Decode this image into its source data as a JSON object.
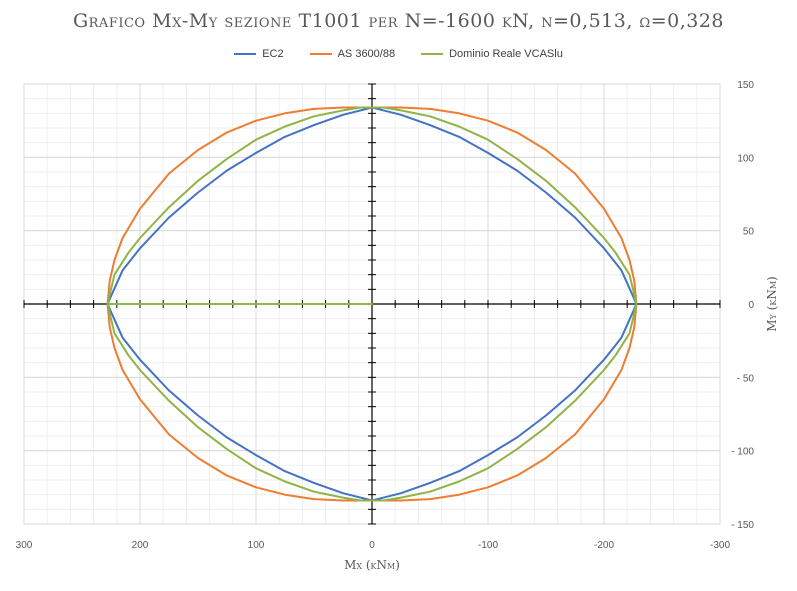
{
  "chart_data": {
    "type": "line",
    "title": "Grafico Mx-My sezione T1001 per N=-1600 kN, ν=0,513, ω=0,328",
    "xlabel": "Mx (kNm)",
    "ylabel": "My (kNm)",
    "xlim": [
      300,
      -300
    ],
    "ylim": [
      -150,
      150
    ],
    "x_reversed": true,
    "x_ticks": [
      300,
      200,
      100,
      0,
      -100,
      -200,
      -300
    ],
    "x_tick_labels": [
      "300",
      "200",
      "100",
      "0",
      "-100",
      "-200",
      "-300"
    ],
    "y_ticks": [
      150,
      100,
      50,
      0,
      -50,
      -100,
      -150
    ],
    "y_tick_labels": [
      "150",
      "100",
      "50",
      "0",
      "- 50",
      "- 100",
      "- 150"
    ],
    "y_axis_position": "right",
    "grid": true,
    "legend_position": "top",
    "series": [
      {
        "name": "EC2",
        "color": "#4472C4",
        "x": [
          228,
          215,
          200,
          175,
          150,
          125,
          100,
          75,
          50,
          25,
          0,
          -25,
          -50,
          -75,
          -100,
          -125,
          -150,
          -175,
          -200,
          -215,
          -228,
          -215,
          -200,
          -175,
          -150,
          -125,
          -100,
          -75,
          -50,
          -25,
          0,
          25,
          50,
          75,
          100,
          125,
          150,
          175,
          200,
          215,
          228
        ],
        "y": [
          0,
          23,
          38,
          59,
          76,
          91,
          103,
          114,
          122,
          129,
          134,
          129,
          122,
          114,
          103,
          91,
          76,
          59,
          38,
          23,
          0,
          -23,
          -38,
          -59,
          -76,
          -91,
          -103,
          -114,
          -122,
          -129,
          -134,
          -129,
          -122,
          -114,
          -103,
          -91,
          -76,
          -59,
          -38,
          -23,
          0
        ]
      },
      {
        "name": "AS 3600/88",
        "color": "#ED7D31",
        "x": [
          228,
          226,
          222,
          215,
          200,
          175,
          150,
          125,
          100,
          75,
          50,
          25,
          0,
          -25,
          -50,
          -75,
          -100,
          -125,
          -150,
          -175,
          -200,
          -215,
          -222,
          -226,
          -228,
          -226,
          -222,
          -215,
          -200,
          -175,
          -150,
          -125,
          -100,
          -75,
          -50,
          -25,
          0,
          25,
          50,
          75,
          100,
          125,
          150,
          175,
          200,
          215,
          222,
          226,
          228
        ],
        "y": [
          0,
          16,
          30,
          45,
          65,
          89,
          105,
          117,
          125,
          130,
          133,
          134,
          134,
          134,
          133,
          130,
          125,
          117,
          105,
          89,
          65,
          45,
          30,
          16,
          0,
          -16,
          -30,
          -45,
          -65,
          -89,
          -105,
          -117,
          -125,
          -130,
          -133,
          -134,
          -134,
          -134,
          -133,
          -130,
          -125,
          -117,
          -105,
          -89,
          -65,
          -45,
          -30,
          -16,
          0
        ]
      },
      {
        "name": "Dominio Reale VCASlu",
        "color": "#8FB447",
        "x": [
          228,
          222,
          210,
          200,
          175,
          150,
          125,
          100,
          75,
          50,
          25,
          10,
          0,
          -10,
          -25,
          -50,
          -75,
          -100,
          -125,
          -150,
          -175,
          -200,
          -210,
          -222,
          -228,
          -222,
          -210,
          -200,
          -175,
          -150,
          -125,
          -100,
          -75,
          -50,
          -25,
          -10,
          0,
          10,
          25,
          50,
          75,
          100,
          125,
          150,
          175,
          200,
          210,
          222,
          228,
          100,
          0
        ],
        "y": [
          0,
          20,
          35,
          45,
          66,
          84,
          99,
          112,
          121,
          128,
          132,
          134,
          134,
          134,
          132,
          128,
          121,
          112,
          99,
          84,
          66,
          45,
          35,
          20,
          0,
          -20,
          -35,
          -45,
          -66,
          -84,
          -99,
          -112,
          -121,
          -128,
          -132,
          -134,
          -134,
          -134,
          -132,
          -128,
          -121,
          -112,
          -99,
          -84,
          -66,
          -45,
          -35,
          -20,
          0,
          0,
          0
        ]
      }
    ]
  }
}
